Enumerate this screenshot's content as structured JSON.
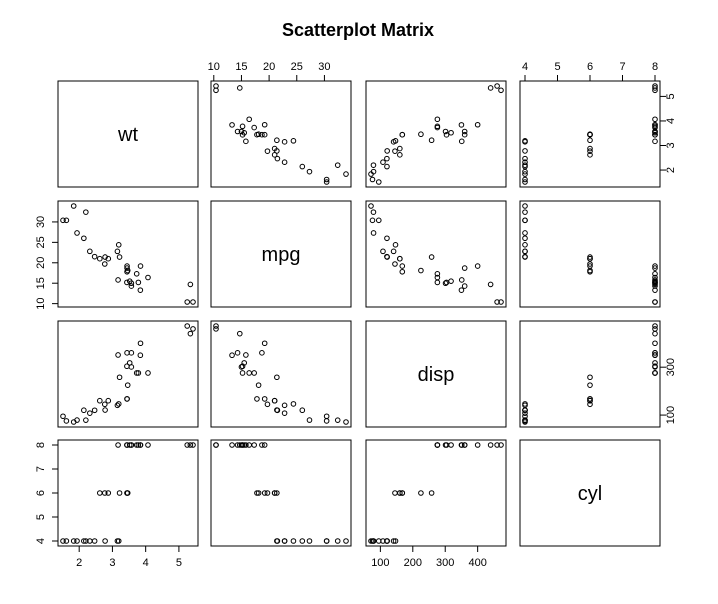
{
  "chart_data": {
    "type": "scatter",
    "subtype": "scatterplot-matrix",
    "title": "Scatterplot Matrix",
    "variables": [
      "wt",
      "mpg",
      "disp",
      "cyl"
    ],
    "ranges": {
      "wt": [
        1.513,
        5.424
      ],
      "mpg": [
        10.4,
        33.9
      ],
      "disp": [
        71.1,
        472
      ],
      "cyl": [
        4,
        8
      ]
    },
    "ticks": {
      "wt": [
        2,
        3,
        4,
        5
      ],
      "mpg": [
        10,
        15,
        20,
        25,
        30
      ],
      "disp": [
        100,
        200,
        300,
        400
      ],
      "cyl": [
        4,
        5,
        6,
        7,
        8
      ]
    },
    "axis_ticks": {
      "top": {
        "1": [
          10,
          15,
          20,
          25,
          30
        ],
        "3": [
          4,
          5,
          6,
          7,
          8
        ]
      },
      "right": {
        "0": [
          2,
          3,
          4,
          5
        ],
        "2": [
          100,
          300
        ]
      },
      "bottom": {
        "0": [
          2,
          3,
          4,
          5
        ],
        "2": [
          100,
          200,
          300,
          400
        ]
      },
      "left": {
        "1": [
          10,
          15,
          20,
          25,
          30
        ],
        "3": [
          4,
          5,
          6,
          7,
          8
        ]
      }
    },
    "data": {
      "wt": [
        2.62,
        2.875,
        2.32,
        3.215,
        3.44,
        3.46,
        3.57,
        3.19,
        3.15,
        3.44,
        3.44,
        4.07,
        3.73,
        3.78,
        5.25,
        5.424,
        5.345,
        2.2,
        1.615,
        1.835,
        2.465,
        3.52,
        3.435,
        3.84,
        3.845,
        1.935,
        2.14,
        1.513,
        3.17,
        2.77,
        3.57,
        2.78
      ],
      "mpg": [
        21,
        21,
        22.8,
        21.4,
        18.7,
        18.1,
        14.3,
        24.4,
        22.8,
        19.2,
        17.8,
        16.4,
        17.3,
        15.2,
        10.4,
        10.4,
        14.7,
        32.4,
        30.4,
        33.9,
        21.5,
        15.5,
        15.2,
        13.3,
        19.2,
        27.3,
        26,
        30.4,
        15.8,
        19.7,
        15,
        21.4
      ],
      "disp": [
        160,
        160,
        108,
        258,
        360,
        225,
        360,
        146.7,
        140.8,
        167.6,
        167.6,
        275.8,
        275.8,
        275.8,
        472,
        460,
        440,
        78.7,
        75.7,
        71.1,
        120.1,
        318,
        304,
        350,
        400,
        79,
        120.3,
        95.1,
        351,
        145,
        301,
        121
      ],
      "cyl": [
        6,
        6,
        4,
        6,
        8,
        6,
        8,
        4,
        4,
        6,
        6,
        8,
        8,
        8,
        8,
        8,
        8,
        4,
        4,
        4,
        4,
        8,
        8,
        8,
        8,
        4,
        4,
        4,
        8,
        6,
        8,
        4
      ]
    }
  }
}
